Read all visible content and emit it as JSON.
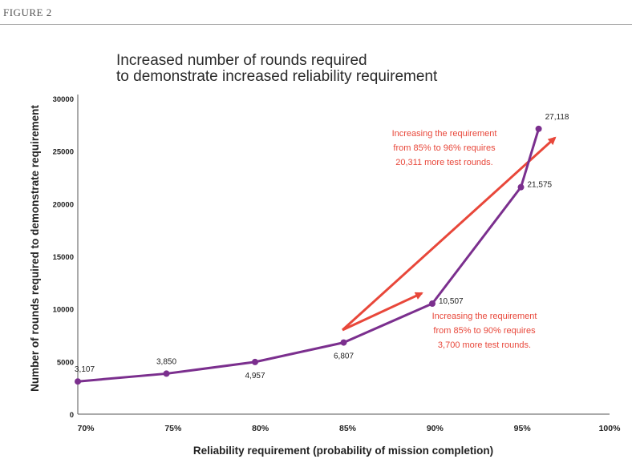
{
  "figure_label": "FIGURE 2",
  "chart_data": {
    "type": "line",
    "title": [
      "Increased number of rounds required",
      "to demonstrate increased reliability requirement"
    ],
    "xlabel": "Reliability requirement (probability of mission completion)",
    "ylabel": "Number of rounds required to demonstrate requirement",
    "x_ticks": [
      "70%",
      "75%",
      "80%",
      "85%",
      "90%",
      "95%",
      "100%"
    ],
    "y_ticks": [
      "0",
      "5000",
      "10000",
      "15000",
      "20000",
      "25000",
      "30000"
    ],
    "xlim": [
      70,
      100
    ],
    "ylim": [
      0,
      30000
    ],
    "series": [
      {
        "color": "#7b2f8e",
        "x": [
          70,
          75,
          80,
          85,
          90,
          95,
          96
        ],
        "values": [
          3107,
          3850,
          4957,
          6807,
          10507,
          21575,
          27118
        ],
        "labels": [
          "3,107",
          "3,850",
          "4,957",
          "6,807",
          "10,507",
          "21,575",
          "27,118"
        ]
      }
    ],
    "annotations": [
      {
        "lines": [
          "Increasing the requirement",
          "from 85% to 96% requires",
          "20,311 more test rounds."
        ],
        "bold_parts": [
          "96%",
          "20,311"
        ],
        "color": "#e8473a"
      },
      {
        "lines": [
          "Increasing the requirement",
          "from 85% to 90% requires",
          "3,700 more test rounds."
        ],
        "bold_parts": [
          "90%",
          "3,700"
        ],
        "color": "#e8473a"
      }
    ]
  }
}
